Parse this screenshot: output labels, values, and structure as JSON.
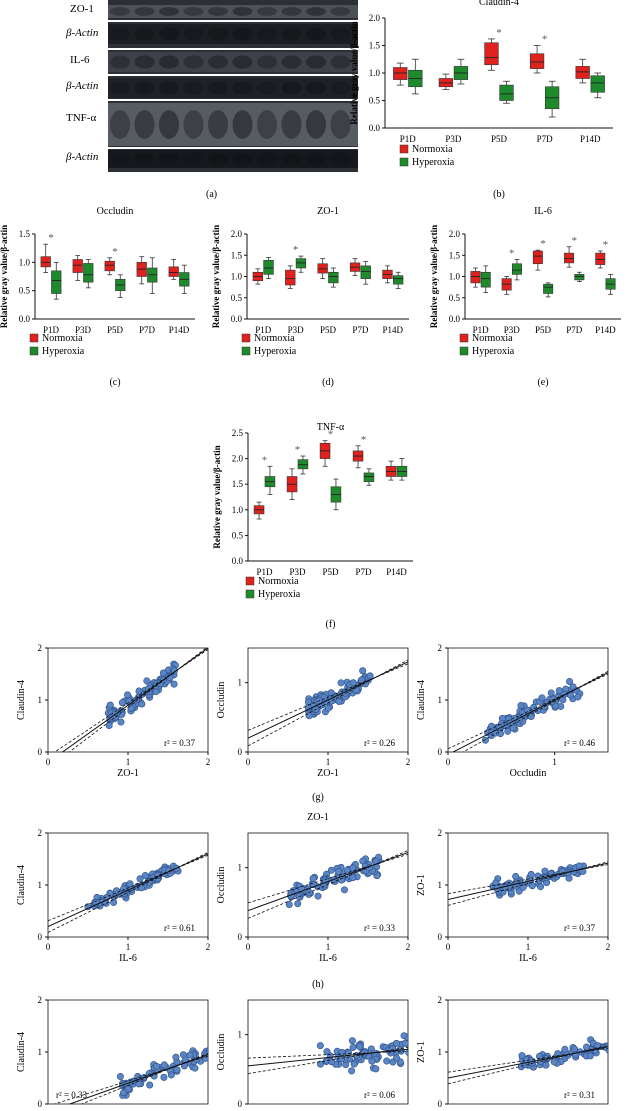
{
  "colors": {
    "normoxia": "#e0221f",
    "hyperoxia": "#1e8a2c",
    "scatter_fill": "#5b86c6",
    "scatter_stroke": "#2d4f86"
  },
  "western_blot": {
    "panel_label": "(a)",
    "rows": [
      "ZO-1",
      "β-Actin",
      "IL-6",
      "β-Actin",
      "TNF-α",
      "β-Actin"
    ]
  },
  "chart_data": [
    {
      "id": "b",
      "type": "boxplot",
      "panel_label": "(b)",
      "title": "Claudin-4",
      "ylabel": "Relative gray value/β-actin",
      "categories": [
        "P1D",
        "P3D",
        "P5D",
        "P7D",
        "P14D"
      ],
      "ylim": [
        0,
        2.0
      ],
      "yticks": [
        0,
        0.5,
        1.0,
        1.5,
        2.0
      ],
      "legend": [
        "Normoxia",
        "Hyperoxia"
      ],
      "normoxia": [
        {
          "min": 0.78,
          "q1": 0.88,
          "median": 1.0,
          "q3": 1.1,
          "max": 1.18
        },
        {
          "min": 0.7,
          "q1": 0.75,
          "median": 0.82,
          "q3": 0.9,
          "max": 0.98
        },
        {
          "min": 1.05,
          "q1": 1.15,
          "median": 1.28,
          "q3": 1.55,
          "max": 1.62
        },
        {
          "min": 1.0,
          "q1": 1.08,
          "median": 1.2,
          "q3": 1.35,
          "max": 1.5
        },
        {
          "min": 0.82,
          "q1": 0.9,
          "median": 1.02,
          "q3": 1.12,
          "max": 1.25
        }
      ],
      "hyperoxia": [
        {
          "min": 0.62,
          "q1": 0.75,
          "median": 0.9,
          "q3": 1.05,
          "max": 1.25
        },
        {
          "min": 0.8,
          "q1": 0.88,
          "median": 1.0,
          "q3": 1.12,
          "max": 1.25
        },
        {
          "min": 0.45,
          "q1": 0.5,
          "median": 0.62,
          "q3": 0.78,
          "max": 0.85
        },
        {
          "min": 0.2,
          "q1": 0.35,
          "median": 0.55,
          "q3": 0.75,
          "max": 0.85
        },
        {
          "min": 0.55,
          "q1": 0.65,
          "median": 0.82,
          "q3": 0.95,
          "max": 1.0
        }
      ],
      "significant": [
        false,
        false,
        true,
        true,
        false
      ]
    },
    {
      "id": "c",
      "type": "boxplot",
      "panel_label": "(c)",
      "title": "Occludin",
      "ylabel": "Relative gray value/β-actin",
      "categories": [
        "P1D",
        "P3D",
        "P5D",
        "P7D",
        "P14D"
      ],
      "ylim": [
        0,
        1.5
      ],
      "yticks": [
        0,
        0.5,
        1.0,
        1.5
      ],
      "legend": [
        "Normoxia",
        "Hyperoxia"
      ],
      "normoxia": [
        {
          "min": 0.82,
          "q1": 0.92,
          "median": 1.0,
          "q3": 1.1,
          "max": 1.32
        },
        {
          "min": 0.68,
          "q1": 0.82,
          "median": 0.95,
          "q3": 1.05,
          "max": 1.12
        },
        {
          "min": 0.78,
          "q1": 0.85,
          "median": 0.95,
          "q3": 1.02,
          "max": 1.08
        },
        {
          "min": 0.62,
          "q1": 0.75,
          "median": 0.88,
          "q3": 1.0,
          "max": 1.1
        },
        {
          "min": 0.7,
          "q1": 0.75,
          "median": 0.82,
          "q3": 0.92,
          "max": 1.05
        }
      ],
      "hyperoxia": [
        {
          "min": 0.35,
          "q1": 0.45,
          "median": 0.68,
          "q3": 0.85,
          "max": 1.0
        },
        {
          "min": 0.55,
          "q1": 0.65,
          "median": 0.78,
          "q3": 0.98,
          "max": 1.05
        },
        {
          "min": 0.38,
          "q1": 0.5,
          "median": 0.6,
          "q3": 0.7,
          "max": 0.78
        },
        {
          "min": 0.45,
          "q1": 0.65,
          "median": 0.78,
          "q3": 0.9,
          "max": 1.08
        },
        {
          "min": 0.45,
          "q1": 0.58,
          "median": 0.7,
          "q3": 0.82,
          "max": 0.95
        }
      ],
      "significant": [
        true,
        false,
        true,
        false,
        false
      ]
    },
    {
      "id": "d",
      "type": "boxplot",
      "panel_label": "(d)",
      "title": "ZO-1",
      "ylabel": "Relative gray value/β-actin",
      "categories": [
        "P1D",
        "P3D",
        "P5D",
        "P7D",
        "P14D"
      ],
      "ylim": [
        0,
        2.0
      ],
      "yticks": [
        0,
        0.5,
        1.0,
        1.5,
        2.0
      ],
      "legend": [
        "Normoxia",
        "Hyperoxia"
      ],
      "normoxia": [
        {
          "min": 0.82,
          "q1": 0.9,
          "median": 1.0,
          "q3": 1.1,
          "max": 1.18
        },
        {
          "min": 0.72,
          "q1": 0.8,
          "median": 0.95,
          "q3": 1.15,
          "max": 1.25
        },
        {
          "min": 0.95,
          "q1": 1.08,
          "median": 1.18,
          "q3": 1.3,
          "max": 1.42
        },
        {
          "min": 1.02,
          "q1": 1.12,
          "median": 1.22,
          "q3": 1.32,
          "max": 1.42
        },
        {
          "min": 0.85,
          "q1": 0.95,
          "median": 1.05,
          "q3": 1.15,
          "max": 1.25
        }
      ],
      "hyperoxia": [
        {
          "min": 0.95,
          "q1": 1.05,
          "median": 1.2,
          "q3": 1.38,
          "max": 1.45
        },
        {
          "min": 1.1,
          "q1": 1.2,
          "median": 1.32,
          "q3": 1.42,
          "max": 1.48
        },
        {
          "min": 0.75,
          "q1": 0.85,
          "median": 1.0,
          "q3": 1.1,
          "max": 1.2
        },
        {
          "min": 0.82,
          "q1": 0.95,
          "median": 1.12,
          "q3": 1.25,
          "max": 1.35
        },
        {
          "min": 0.72,
          "q1": 0.82,
          "median": 0.95,
          "q3": 1.02,
          "max": 1.1
        }
      ],
      "significant": [
        false,
        true,
        false,
        false,
        false
      ]
    },
    {
      "id": "e",
      "type": "boxplot",
      "panel_label": "(e)",
      "title": "IL-6",
      "ylabel": "Relative gray value/β-actin",
      "categories": [
        "P1D",
        "P3D",
        "P5D",
        "P7D",
        "P14D"
      ],
      "ylim": [
        0,
        2.0
      ],
      "yticks": [
        0,
        0.5,
        1.0,
        1.5,
        2.0
      ],
      "legend": [
        "Normoxia",
        "Hyperoxia"
      ],
      "normoxia": [
        {
          "min": 0.75,
          "q1": 0.85,
          "median": 1.0,
          "q3": 1.12,
          "max": 1.2
        },
        {
          "min": 0.58,
          "q1": 0.68,
          "median": 0.82,
          "q3": 0.95,
          "max": 1.0
        },
        {
          "min": 1.15,
          "q1": 1.3,
          "median": 1.48,
          "q3": 1.6,
          "max": 1.62
        },
        {
          "min": 1.22,
          "q1": 1.32,
          "median": 1.42,
          "q3": 1.55,
          "max": 1.7
        },
        {
          "min": 1.2,
          "q1": 1.28,
          "median": 1.4,
          "q3": 1.55,
          "max": 1.6
        }
      ],
      "hyperoxia": [
        {
          "min": 0.62,
          "q1": 0.75,
          "median": 0.95,
          "q3": 1.1,
          "max": 1.25
        },
        {
          "min": 0.92,
          "q1": 1.05,
          "median": 1.15,
          "q3": 1.3,
          "max": 1.4
        },
        {
          "min": 0.52,
          "q1": 0.6,
          "median": 0.75,
          "q3": 0.82,
          "max": 0.85
        },
        {
          "min": 0.88,
          "q1": 0.92,
          "median": 1.0,
          "q3": 1.05,
          "max": 1.1
        },
        {
          "min": 0.58,
          "q1": 0.7,
          "median": 0.82,
          "q3": 0.95,
          "max": 1.05
        }
      ],
      "significant": [
        false,
        true,
        true,
        true,
        true
      ]
    },
    {
      "id": "f",
      "type": "boxplot",
      "panel_label": "(f)",
      "title": "TNF-α",
      "ylabel": "Relative gray value/β-actin",
      "categories": [
        "P1D",
        "P3D",
        "P5D",
        "P7D",
        "P14D"
      ],
      "ylim": [
        0,
        2.5
      ],
      "yticks": [
        0,
        0.5,
        1.0,
        1.5,
        2.0,
        2.5
      ],
      "legend": [
        "Normoxia",
        "Hyperoxia"
      ],
      "normoxia": [
        {
          "min": 0.82,
          "q1": 0.92,
          "median": 1.0,
          "q3": 1.08,
          "max": 1.15
        },
        {
          "min": 1.2,
          "q1": 1.35,
          "median": 1.5,
          "q3": 1.65,
          "max": 1.8
        },
        {
          "min": 1.85,
          "q1": 2.0,
          "median": 2.15,
          "q3": 2.3,
          "max": 2.35
        },
        {
          "min": 1.82,
          "q1": 1.95,
          "median": 2.05,
          "q3": 2.15,
          "max": 2.25
        },
        {
          "min": 1.58,
          "q1": 1.65,
          "median": 1.75,
          "q3": 1.85,
          "max": 1.95
        }
      ],
      "hyperoxia": [
        {
          "min": 1.3,
          "q1": 1.45,
          "median": 1.55,
          "q3": 1.65,
          "max": 1.85
        },
        {
          "min": 1.7,
          "q1": 1.8,
          "median": 1.88,
          "q3": 1.98,
          "max": 2.05
        },
        {
          "min": 1.0,
          "q1": 1.15,
          "median": 1.3,
          "q3": 1.45,
          "max": 1.6
        },
        {
          "min": 1.48,
          "q1": 1.55,
          "median": 1.65,
          "q3": 1.72,
          "max": 1.8
        },
        {
          "min": 1.58,
          "q1": 1.65,
          "median": 1.75,
          "q3": 1.85,
          "max": 2.0
        }
      ],
      "significant": [
        true,
        true,
        true,
        true,
        false
      ]
    },
    {
      "id": "g1",
      "type": "scatter",
      "xlabel": "ZO-1",
      "ylabel": "Claudin-4",
      "xlim": [
        0,
        2
      ],
      "ylim": [
        0,
        2
      ],
      "xticks": [
        0,
        1,
        2
      ],
      "yticks": [
        0,
        1,
        2
      ],
      "r2": "r² = 0.37",
      "r2_pos": "bottom-right",
      "fit": {
        "slope": 1.1,
        "intercept": -0.2
      },
      "seed": 11,
      "cloud": {
        "x0": 0.75,
        "x1": 1.6,
        "noise": 0.18
      }
    },
    {
      "id": "g2",
      "type": "scatter",
      "xlabel": "ZO-1",
      "ylabel": "Occludin",
      "xlim": [
        0,
        2
      ],
      "ylim": [
        0,
        1.5
      ],
      "xticks": [
        0,
        1,
        2
      ],
      "yticks": [
        0,
        1
      ],
      "r2": "r² = 0.26",
      "r2_pos": "bottom-right",
      "fit": {
        "slope": 0.55,
        "intercept": 0.2
      },
      "seed": 23,
      "cloud": {
        "x0": 0.75,
        "x1": 1.55,
        "noise": 0.14
      }
    },
    {
      "id": "g3",
      "type": "scatter",
      "xlabel": "Occludin",
      "ylabel": "Claudin-4",
      "xlim": [
        0,
        1.5
      ],
      "ylim": [
        0,
        2
      ],
      "xticks": [
        0,
        1
      ],
      "yticks": [
        0,
        1,
        2
      ],
      "r2": "r² = 0.46",
      "r2_pos": "bottom-right",
      "fit": {
        "slope": 1.05,
        "intercept": -0.05
      },
      "seed": 37,
      "cloud": {
        "x0": 0.35,
        "x1": 1.25,
        "noise": 0.17
      }
    },
    {
      "id": "h1",
      "type": "scatter",
      "xlabel": "IL-6",
      "ylabel": "Claudin-4",
      "xlim": [
        0,
        2
      ],
      "ylim": [
        0,
        2
      ],
      "xticks": [
        0,
        1,
        2
      ],
      "yticks": [
        0,
        1,
        2
      ],
      "r2": "r² = 0.61",
      "r2_pos": "bottom-right",
      "fit": {
        "slope": 0.7,
        "intercept": 0.2
      },
      "seed": 41,
      "cloud": {
        "x0": 0.5,
        "x1": 1.65,
        "noise": 0.12
      }
    },
    {
      "id": "h2",
      "type": "scatter",
      "xlabel": "IL-6",
      "ylabel": "Occludin",
      "xlim": [
        0,
        2
      ],
      "ylim": [
        0,
        1.5
      ],
      "xticks": [
        0,
        1,
        2
      ],
      "yticks": [
        0,
        1
      ],
      "r2": "r² = 0.33",
      "r2_pos": "bottom-right",
      "fit": {
        "slope": 0.42,
        "intercept": 0.38
      },
      "seed": 53,
      "cloud": {
        "x0": 0.5,
        "x1": 1.65,
        "noise": 0.15
      }
    },
    {
      "id": "h3",
      "type": "scatter",
      "xlabel": "IL-6",
      "ylabel": "ZO-1",
      "xlim": [
        0,
        2
      ],
      "ylim": [
        0,
        2
      ],
      "xticks": [
        0,
        1,
        2
      ],
      "yticks": [
        0,
        1,
        2
      ],
      "r2": "r² = 0.37",
      "r2_pos": "bottom-right",
      "fit": {
        "slope": 0.35,
        "intercept": 0.72
      },
      "seed": 67,
      "cloud": {
        "x0": 0.55,
        "x1": 1.7,
        "noise": 0.13
      }
    },
    {
      "id": "i1",
      "type": "scatter",
      "xlabel": "",
      "ylabel": "Claudin-4",
      "xlim": [
        0,
        2
      ],
      "ylim": [
        0,
        2
      ],
      "xticks": [],
      "yticks": [
        0,
        1,
        2
      ],
      "r2": "r² = 0.33",
      "r2_pos": "bottom-left",
      "fit": {
        "slope": 0.55,
        "intercept": -0.15
      },
      "seed": 79,
      "cloud": {
        "x0": 0.9,
        "x1": 2.3,
        "noise": 0.2
      }
    },
    {
      "id": "i2",
      "type": "scatter",
      "xlabel": "",
      "ylabel": "Occludin",
      "xlim": [
        0,
        2
      ],
      "ylim": [
        0,
        1.5
      ],
      "xticks": [],
      "yticks": [
        0,
        1
      ],
      "r2": "r² = 0.06",
      "r2_pos": "bottom-right",
      "fit": {
        "slope": 0.12,
        "intercept": 0.55
      },
      "seed": 83,
      "cloud": {
        "x0": 0.9,
        "x1": 2.3,
        "noise": 0.2
      }
    },
    {
      "id": "i3",
      "type": "scatter",
      "xlabel": "",
      "ylabel": "ZO-1",
      "xlim": [
        0,
        2
      ],
      "ylim": [
        0,
        2
      ],
      "xticks": [],
      "yticks": [
        0,
        1,
        2
      ],
      "r2": "r² = 0.31",
      "r2_pos": "bottom-right",
      "fit": {
        "slope": 0.3,
        "intercept": 0.5
      },
      "seed": 97,
      "cloud": {
        "x0": 0.9,
        "x1": 2.3,
        "noise": 0.13
      }
    }
  ],
  "panel_labels": {
    "g": "(g)",
    "h": "(h)"
  },
  "h_title": "ZO-1"
}
